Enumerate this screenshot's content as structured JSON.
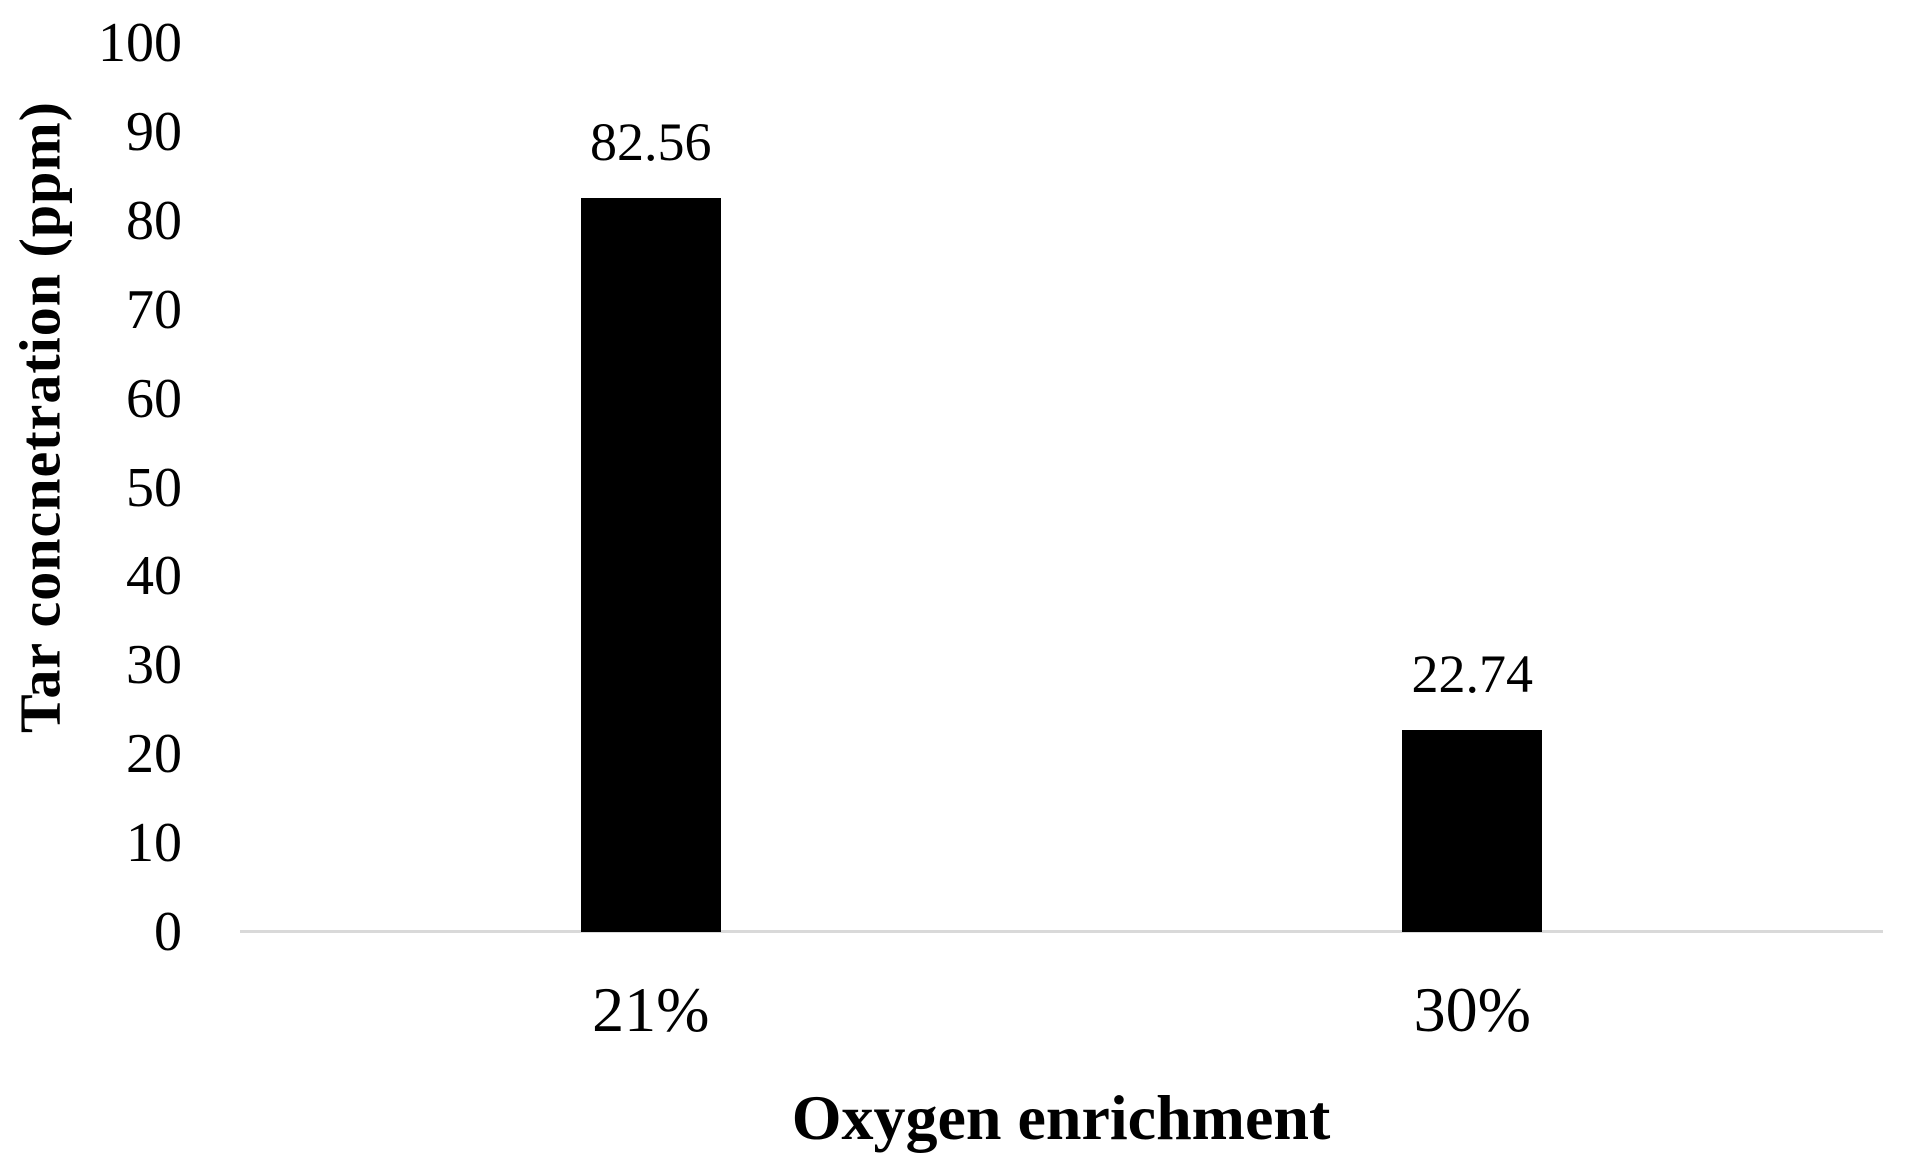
{
  "chart_data": {
    "type": "bar",
    "title": "",
    "categories": [
      "21%",
      "30%"
    ],
    "values": [
      82.56,
      22.74
    ],
    "value_labels": [
      "82.56",
      "22.74"
    ],
    "xlabel": "Oxygen enrichment",
    "ylabel": "Tar concnetration (ppm)",
    "ylim": [
      0,
      100
    ],
    "yticks": [
      0,
      10,
      20,
      30,
      40,
      50,
      60,
      70,
      80,
      90,
      100
    ],
    "ytick_labels": [
      "0",
      "10",
      "20",
      "30",
      "40",
      "50",
      "60",
      "70",
      "80",
      "90",
      "100"
    ],
    "bar_color": "#000000",
    "axis_line_color": "#d9d9d9",
    "text_color": "#000000",
    "grid": "off",
    "legend_position": "none"
  }
}
